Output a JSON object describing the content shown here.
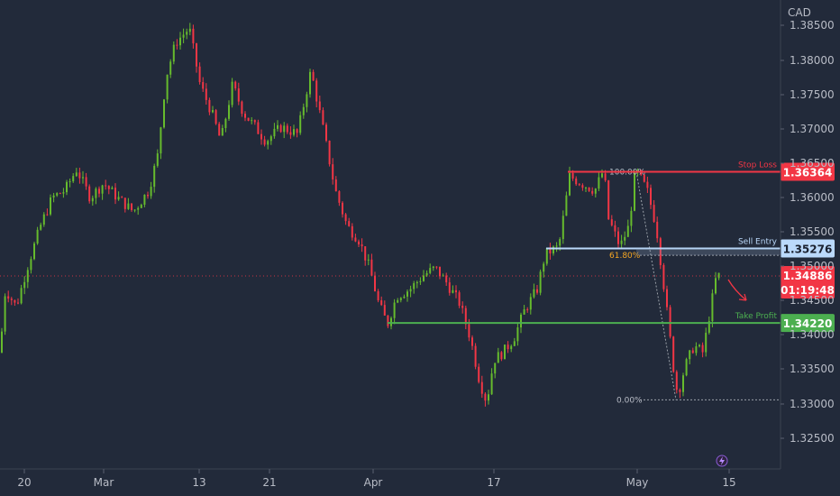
{
  "chart_data": {
    "type": "candlestick",
    "currency_label": "CAD",
    "y_ticks": [
      "1.38500",
      "1.38000",
      "1.37500",
      "1.37000",
      "1.36500",
      "1.36000",
      "1.35500",
      "1.35000",
      "1.34500",
      "1.34000",
      "1.33500",
      "1.33000",
      "1.32500"
    ],
    "x_ticks": [
      "20",
      "Mar",
      "13",
      "21",
      "Apr",
      "17",
      "May",
      "15"
    ],
    "ylim": [
      1.3215,
      1.388
    ],
    "price_path": [
      [
        0,
        1.338
      ],
      [
        6,
        1.347
      ],
      [
        18,
        1.3445
      ],
      [
        30,
        1.35
      ],
      [
        45,
        1.356
      ],
      [
        58,
        1.36
      ],
      [
        72,
        1.361
      ],
      [
        85,
        1.364
      ],
      [
        100,
        1.36
      ],
      [
        115,
        1.362
      ],
      [
        130,
        1.36
      ],
      [
        148,
        1.358
      ],
      [
        165,
        1.361
      ],
      [
        175,
        1.366
      ],
      [
        184,
        1.377
      ],
      [
        195,
        1.382
      ],
      [
        210,
        1.384
      ],
      [
        222,
        1.376
      ],
      [
        235,
        1.372
      ],
      [
        245,
        1.368
      ],
      [
        258,
        1.376
      ],
      [
        270,
        1.372
      ],
      [
        283,
        1.37
      ],
      [
        295,
        1.368
      ],
      [
        312,
        1.37
      ],
      [
        330,
        1.369
      ],
      [
        345,
        1.378
      ],
      [
        358,
        1.37
      ],
      [
        372,
        1.361
      ],
      [
        385,
        1.356
      ],
      [
        398,
        1.354
      ],
      [
        410,
        1.35
      ],
      [
        420,
        1.345
      ],
      [
        430,
        1.342
      ],
      [
        440,
        1.346
      ],
      [
        455,
        1.347
      ],
      [
        470,
        1.349
      ],
      [
        483,
        1.35
      ],
      [
        495,
        1.348
      ],
      [
        510,
        1.345
      ],
      [
        522,
        1.34
      ],
      [
        532,
        1.334
      ],
      [
        540,
        1.331
      ],
      [
        548,
        1.337
      ],
      [
        558,
        1.338
      ],
      [
        570,
        1.34
      ],
      [
        582,
        1.344
      ],
      [
        596,
        1.347
      ],
      [
        605,
        1.352
      ],
      [
        620,
        1.353
      ],
      [
        632,
        1.363
      ],
      [
        645,
        1.362
      ],
      [
        660,
        1.361
      ],
      [
        670,
        1.364
      ],
      [
        675,
        1.357
      ],
      [
        688,
        1.353
      ],
      [
        698,
        1.356
      ],
      [
        705,
        1.364
      ],
      [
        718,
        1.361
      ],
      [
        728,
        1.356
      ],
      [
        738,
        1.346
      ],
      [
        748,
        1.335
      ],
      [
        752,
        1.332
      ],
      [
        760,
        1.336
      ],
      [
        770,
        1.339
      ],
      [
        780,
        1.338
      ],
      [
        788,
        1.344
      ],
      [
        795,
        1.349
      ],
      [
        800,
        1.3488
      ]
    ],
    "levels": [
      {
        "name": "Stop Loss",
        "price": 1.36364,
        "tag": "1.36364",
        "color": "#f23645"
      },
      {
        "name": "Sell Entry",
        "price": 1.35276,
        "tag": "1.35276",
        "color": "#bbd9fb"
      },
      {
        "name": "Take Profit",
        "price": 1.3422,
        "tag": "1.34220",
        "color": "#4caf50"
      }
    ],
    "current_price": {
      "value": 1.34886,
      "tag": "1.34886",
      "countdown": "01:19:48",
      "color": "#f23645"
    },
    "fib_levels": [
      {
        "label": "100.00%",
        "price": 1.36364
      },
      {
        "label": "61.80%",
        "price": 1.3518
      },
      {
        "label": "0.00%",
        "price": 1.3313
      }
    ]
  }
}
